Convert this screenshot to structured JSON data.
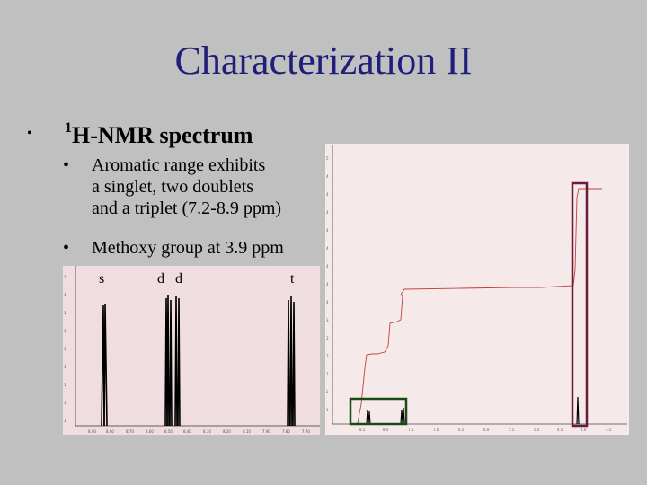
{
  "slide": {
    "title": "Characterization II",
    "bullet_main_sup": "1",
    "bullet_main_text": "H-NMR spectrum",
    "sub1_lines": [
      "Aromatic range exhibits",
      "a singlet, two doublets",
      "and a triplet (7.2-8.9 ppm)"
    ],
    "sub2_text": "Methoxy group at 3.9 ppm",
    "peak_labels": [
      "s",
      "d",
      "d",
      "t"
    ]
  }
}
